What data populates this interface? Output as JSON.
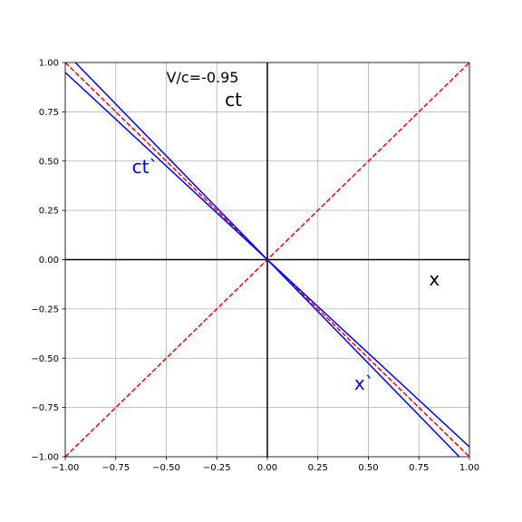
{
  "chart_data": {
    "type": "line",
    "title": "",
    "xlabel": "",
    "ylabel": "",
    "xlim": [
      -1.0,
      1.0
    ],
    "ylim": [
      -1.0,
      1.0
    ],
    "grid": true,
    "x_ticks": [
      -1.0,
      -0.75,
      -0.5,
      -0.25,
      0.0,
      0.25,
      0.5,
      0.75,
      1.0
    ],
    "y_ticks": [
      -1.0,
      -0.75,
      -0.5,
      -0.25,
      0.0,
      0.25,
      0.5,
      0.75,
      1.0
    ],
    "x_tick_labels": [
      "−1.00",
      "−0.75",
      "−0.50",
      "−0.25",
      "0.00",
      "0.25",
      "0.50",
      "0.75",
      "1.00"
    ],
    "y_tick_labels": [
      "−1.00",
      "−0.75",
      "−0.50",
      "−0.25",
      "0.00",
      "0.25",
      "0.50",
      "0.75",
      "1.00"
    ],
    "axes_lines_color": "#000000",
    "series": [
      {
        "id": "light-line-pos",
        "color": "#ff0000",
        "style": "dashed",
        "x": [
          -1.0,
          1.0
        ],
        "y": [
          -1.0,
          1.0
        ]
      },
      {
        "id": "light-line-neg",
        "color": "#ff0000",
        "style": "dashed",
        "x": [
          -1.0,
          1.0
        ],
        "y": [
          1.0,
          -1.0
        ]
      },
      {
        "id": "ct-prime-axis",
        "color": "#0000ff",
        "style": "solid",
        "x": [
          -0.95,
          0.95
        ],
        "y": [
          1.0,
          -1.0
        ]
      },
      {
        "id": "x-prime-axis",
        "color": "#0000ff",
        "style": "solid",
        "x": [
          -1.0,
          1.0
        ],
        "y": [
          0.95,
          -0.95
        ]
      }
    ],
    "annotations": [
      {
        "id": "velocity-label",
        "text": "V/c=-0.95",
        "x": -0.5,
        "y": 0.9,
        "color": "#000000",
        "size": 16
      },
      {
        "id": "ct-label",
        "text": "ct",
        "x": -0.21,
        "y": 0.78,
        "color": "#000000",
        "size": 20
      },
      {
        "id": "ct-prime-label",
        "text": "ct`",
        "x": -0.67,
        "y": 0.44,
        "color": "#0000ff",
        "size": 20
      },
      {
        "id": "x-label",
        "text": "x",
        "x": 0.8,
        "y": -0.13,
        "color": "#000000",
        "size": 20
      },
      {
        "id": "x-prime-label",
        "text": "x`",
        "x": 0.43,
        "y": -0.66,
        "color": "#0000ff",
        "size": 20
      }
    ]
  }
}
